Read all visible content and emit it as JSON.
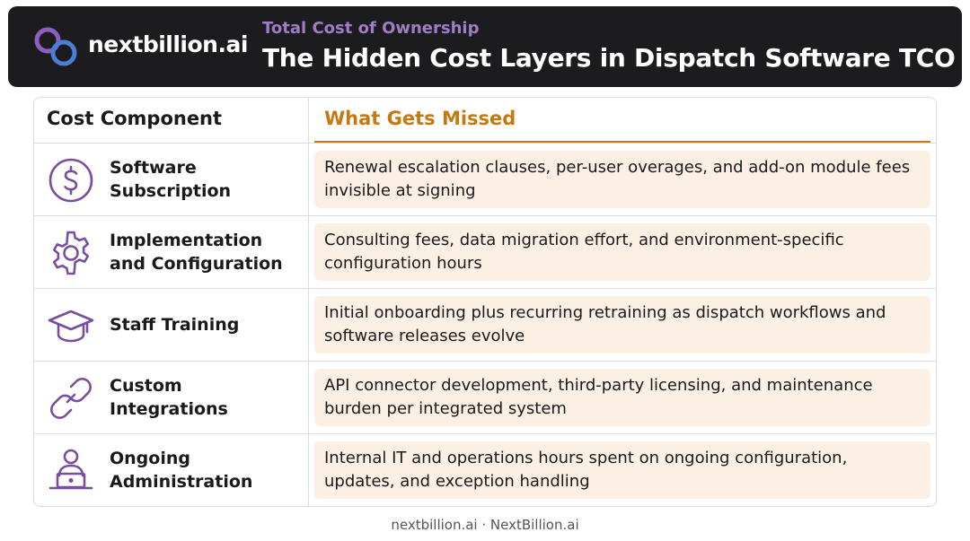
{
  "header": {
    "brand": "nextbillion.ai",
    "subtitle": "Total Cost of Ownership",
    "title": "The Hidden Cost Layers in Dispatch Software TCO"
  },
  "colors": {
    "header_bg": "#1c1c1e",
    "subtitle": "#a07cc4",
    "accent": "#c47a10",
    "icon": "#7a4e9e",
    "cell_bg": "#fcefe4"
  },
  "table": {
    "headers": [
      "Cost Component",
      "What Gets Missed"
    ],
    "rows": [
      {
        "icon": "dollar-icon",
        "component": "Software Subscription",
        "missed": "Renewal escalation clauses, per-user overages, and add-on module fees invisible at signing"
      },
      {
        "icon": "gear-icon",
        "component": "Implementation and Configuration",
        "missed": "Consulting fees, data migration effort, and environment-specific configuration hours"
      },
      {
        "icon": "graduation-cap-icon",
        "component": "Staff Training",
        "missed": "Initial onboarding plus recurring retraining as dispatch workflows and software releases evolve"
      },
      {
        "icon": "link-icon",
        "component": "Custom Integrations",
        "missed": "API connector development, third-party licensing, and maintenance burden per integrated system"
      },
      {
        "icon": "user-laptop-icon",
        "component": "Ongoing Administration",
        "missed": "Internal IT and operations hours spent on ongoing configuration, updates, and exception handling"
      }
    ]
  },
  "footer": "nextbillion.ai · NextBillion.ai"
}
